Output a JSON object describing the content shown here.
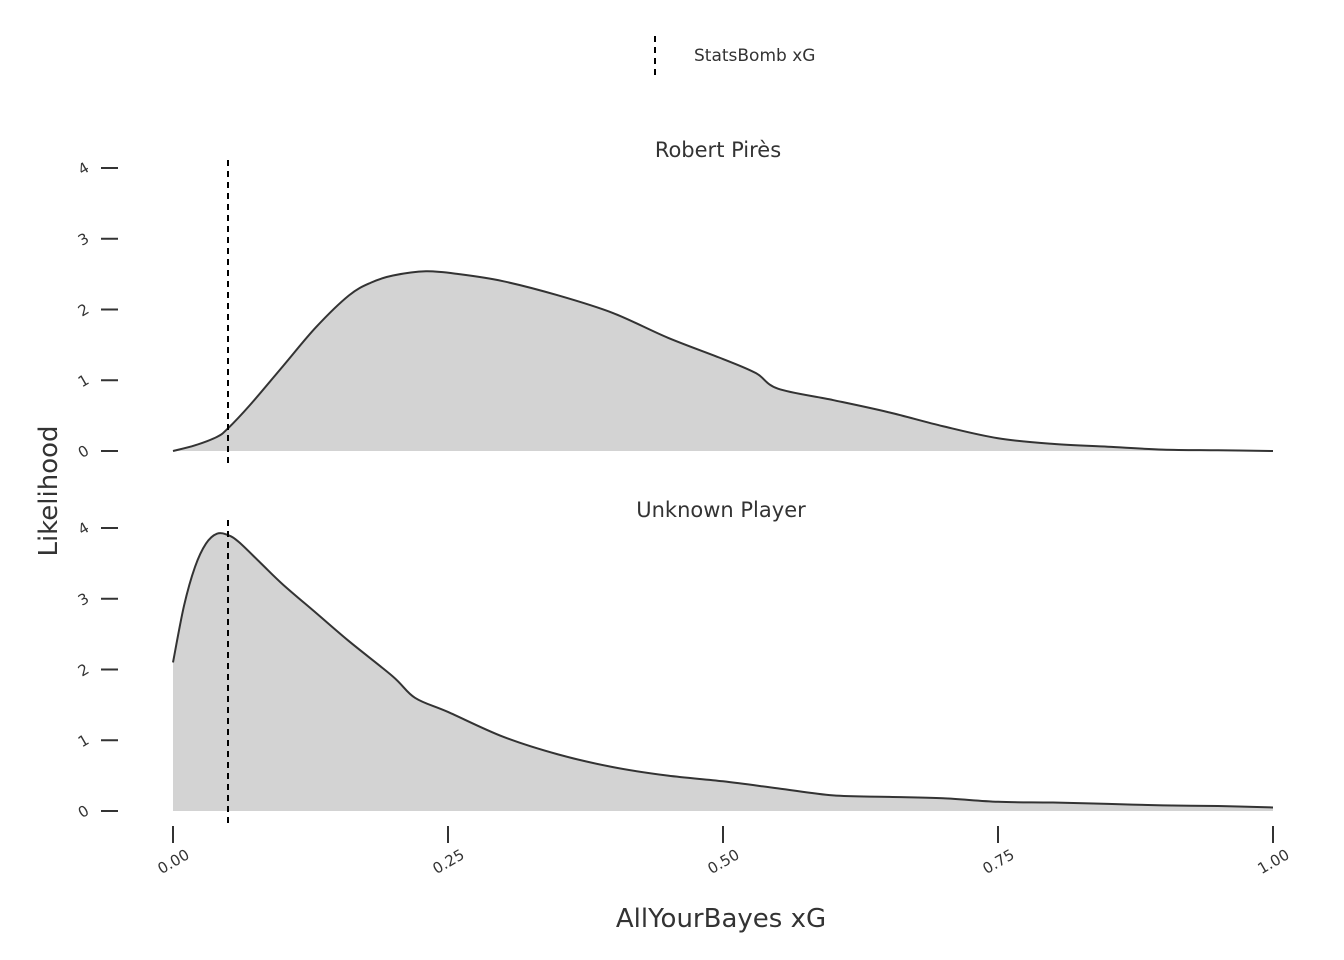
{
  "chart_data": {
    "type": "area",
    "xlabel": "AllYourBayes xG",
    "ylabel": "Likelihood",
    "xlim": [
      0,
      1
    ],
    "ylim": [
      0,
      4
    ],
    "x_ticks": [
      {
        "value": 0,
        "label": "0.00"
      },
      {
        "value": 0.25,
        "label": "0.25"
      },
      {
        "value": 0.5,
        "label": "0.50"
      },
      {
        "value": 0.75,
        "label": "0.75"
      },
      {
        "value": 1,
        "label": "1.00"
      }
    ],
    "y_ticks": [
      {
        "value": 0,
        "label": "0"
      },
      {
        "value": 1,
        "label": "1"
      },
      {
        "value": 2,
        "label": "2"
      },
      {
        "value": 3,
        "label": "3"
      },
      {
        "value": 4,
        "label": "4"
      }
    ],
    "grid": false,
    "legend": {
      "placement": "top",
      "entries": [
        {
          "label": "StatsBomb xG",
          "style": "dashed-line"
        }
      ]
    },
    "colors": {
      "fill": "#d3d3d3",
      "line": "#333333",
      "reference": "#000000"
    },
    "panels": [
      {
        "title": "Robert Pirès",
        "reference_x": 0.05,
        "x": [
          0,
          0.02,
          0.04,
          0.05,
          0.07,
          0.1,
          0.13,
          0.16,
          0.18,
          0.2,
          0.23,
          0.26,
          0.3,
          0.35,
          0.4,
          0.45,
          0.5,
          0.53,
          0.55,
          0.6,
          0.65,
          0.7,
          0.75,
          0.8,
          0.85,
          0.9,
          0.95,
          1.0
        ],
        "values": [
          0,
          0.08,
          0.2,
          0.32,
          0.65,
          1.2,
          1.75,
          2.2,
          2.38,
          2.48,
          2.54,
          2.5,
          2.4,
          2.2,
          1.95,
          1.6,
          1.3,
          1.1,
          0.88,
          0.72,
          0.55,
          0.35,
          0.18,
          0.1,
          0.06,
          0.02,
          0.01,
          0
        ]
      },
      {
        "title": "Unknown Player",
        "reference_x": 0.05,
        "x": [
          0,
          0.01,
          0.02,
          0.03,
          0.04,
          0.05,
          0.06,
          0.08,
          0.1,
          0.13,
          0.16,
          0.2,
          0.22,
          0.25,
          0.3,
          0.35,
          0.4,
          0.45,
          0.5,
          0.55,
          0.6,
          0.65,
          0.7,
          0.75,
          0.8,
          0.85,
          0.9,
          0.95,
          1.0
        ],
        "values": [
          2.1,
          2.9,
          3.45,
          3.78,
          3.92,
          3.9,
          3.8,
          3.5,
          3.2,
          2.8,
          2.4,
          1.9,
          1.6,
          1.4,
          1.05,
          0.8,
          0.62,
          0.5,
          0.42,
          0.32,
          0.22,
          0.2,
          0.18,
          0.13,
          0.12,
          0.1,
          0.08,
          0.07,
          0.05
        ]
      }
    ]
  }
}
